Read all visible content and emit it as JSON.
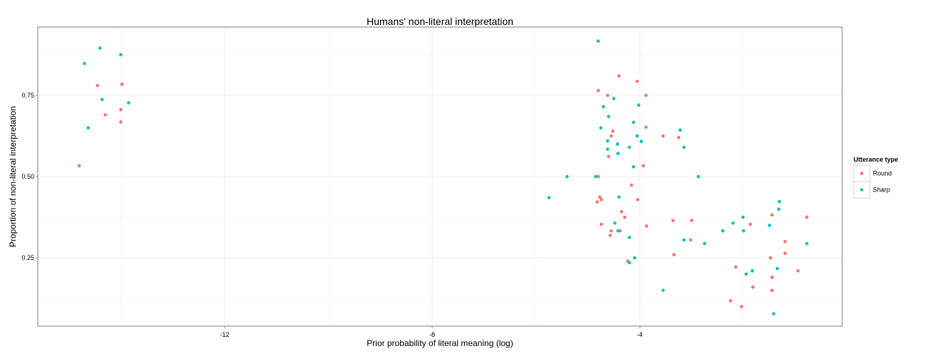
{
  "chart_data": {
    "type": "scatter",
    "title": "Humans' non-literal interpretation",
    "xlabel": "Prior probability of literal meaning (log)",
    "ylabel": "Proportion of non-literal interpretation",
    "xlim": [
      -15.6,
      -0.1
    ],
    "ylim": [
      0.04,
      0.96
    ],
    "x_ticks": [
      {
        "value": -12,
        "label": "-12"
      },
      {
        "value": -8,
        "label": "-8"
      },
      {
        "value": -4,
        "label": "-4"
      }
    ],
    "y_ticks": [
      {
        "value": 0.25,
        "label": "0.25"
      },
      {
        "value": 0.5,
        "label": "0.5",
        "text": "0.50"
      },
      {
        "value": 0.75,
        "label": "0.75"
      }
    ],
    "grid": true,
    "legend": {
      "title": "Utterance type",
      "placement": "right"
    },
    "series": [
      {
        "name": "Round",
        "color": "#f8766d",
        "points": [
          [
            -14.8,
            0.533
          ],
          [
            -14.45,
            0.78
          ],
          [
            -14.3,
            0.69
          ],
          [
            -14.0,
            0.706
          ],
          [
            -14.0,
            0.668
          ],
          [
            -13.98,
            0.784
          ],
          [
            -4.8,
            0.765
          ],
          [
            -4.62,
            0.75
          ],
          [
            -4.4,
            0.81
          ],
          [
            -4.05,
            0.793
          ],
          [
            -3.88,
            0.75
          ],
          [
            -4.52,
            0.64
          ],
          [
            -4.55,
            0.625
          ],
          [
            -3.88,
            0.652
          ],
          [
            -3.55,
            0.625
          ],
          [
            -3.25,
            0.62
          ],
          [
            -4.6,
            0.562
          ],
          [
            -3.93,
            0.533
          ],
          [
            -4.8,
            0.5
          ],
          [
            -4.16,
            0.474
          ],
          [
            -4.77,
            0.437
          ],
          [
            -4.74,
            0.429
          ],
          [
            -4.82,
            0.422
          ],
          [
            -4.04,
            0.429
          ],
          [
            -4.35,
            0.392
          ],
          [
            -4.29,
            0.375
          ],
          [
            -3.36,
            0.365
          ],
          [
            -3.0,
            0.365
          ],
          [
            -4.74,
            0.353
          ],
          [
            -3.87,
            0.348
          ],
          [
            -4.55,
            0.333
          ],
          [
            -4.38,
            0.333
          ],
          [
            -4.57,
            0.319
          ],
          [
            -3.02,
            0.305
          ],
          [
            -3.34,
            0.26
          ],
          [
            -4.23,
            0.24
          ],
          [
            -1.45,
            0.382
          ],
          [
            -1.87,
            0.353
          ],
          [
            -0.78,
            0.375
          ],
          [
            -1.2,
            0.3
          ],
          [
            -1.2,
            0.264
          ],
          [
            -1.48,
            0.25
          ],
          [
            -1.45,
            0.19
          ],
          [
            -2.15,
            0.222
          ],
          [
            -1.82,
            0.16
          ],
          [
            -1.45,
            0.15
          ],
          [
            -0.95,
            0.21
          ],
          [
            -2.25,
            0.118
          ],
          [
            -2.04,
            0.1
          ]
        ]
      },
      {
        "name": "Sharp",
        "color": "#00bfc4",
        "points": [
          [
            -14.4,
            0.895
          ],
          [
            -14.0,
            0.875
          ],
          [
            -14.7,
            0.848
          ],
          [
            -14.36,
            0.737
          ],
          [
            -13.85,
            0.727
          ],
          [
            -14.63,
            0.65
          ],
          [
            -4.8,
            0.917
          ],
          [
            -4.5,
            0.74
          ],
          [
            -4.02,
            0.72
          ],
          [
            -4.7,
            0.715
          ],
          [
            -4.6,
            0.685
          ],
          [
            -4.12,
            0.667
          ],
          [
            -4.75,
            0.65
          ],
          [
            -3.22,
            0.643
          ],
          [
            -4.05,
            0.625
          ],
          [
            -4.62,
            0.61
          ],
          [
            -3.97,
            0.608
          ],
          [
            -4.43,
            0.6
          ],
          [
            -4.2,
            0.59
          ],
          [
            -4.62,
            0.584
          ],
          [
            -3.15,
            0.59
          ],
          [
            -4.42,
            0.571
          ],
          [
            -4.12,
            0.53
          ],
          [
            -5.4,
            0.5
          ],
          [
            -4.85,
            0.5
          ],
          [
            -2.87,
            0.5
          ],
          [
            -5.75,
            0.435
          ],
          [
            -4.4,
            0.437
          ],
          [
            -4.48,
            0.357
          ],
          [
            -4.42,
            0.333
          ],
          [
            -4.2,
            0.313
          ],
          [
            -4.1,
            0.25
          ],
          [
            -4.2,
            0.235
          ],
          [
            -3.55,
            0.15
          ],
          [
            -2.01,
            0.375
          ],
          [
            -2.2,
            0.357
          ],
          [
            -1.5,
            0.35
          ],
          [
            -2.4,
            0.333
          ],
          [
            -2.0,
            0.333
          ],
          [
            -3.15,
            0.305
          ],
          [
            -2.75,
            0.294
          ],
          [
            -1.31,
            0.423
          ],
          [
            -1.32,
            0.4
          ],
          [
            -0.78,
            0.294
          ],
          [
            -1.35,
            0.217
          ],
          [
            -1.83,
            0.21
          ],
          [
            -1.95,
            0.2
          ],
          [
            -1.42,
            0.078
          ]
        ]
      }
    ]
  }
}
